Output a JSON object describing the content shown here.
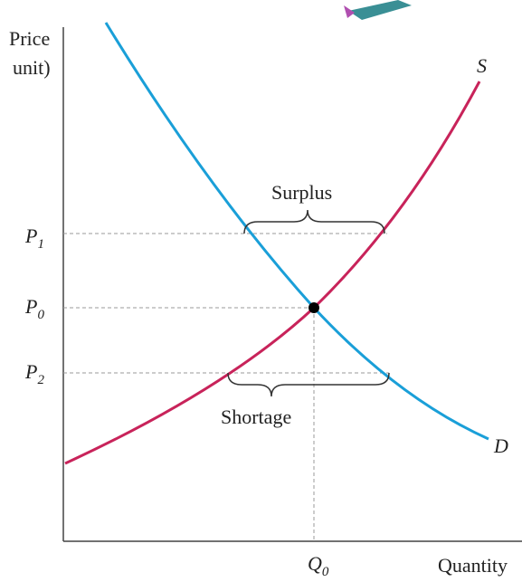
{
  "axis": {
    "y_label_lines": [
      "Price",
      "unit)"
    ],
    "x_label": "Quantity"
  },
  "curves": {
    "supply": "S",
    "demand": "D"
  },
  "annotations": {
    "surplus": "Surplus",
    "shortage": "Shortage"
  },
  "price_levels": [
    {
      "main": "P",
      "sub": "1"
    },
    {
      "main": "P",
      "sub": "0"
    },
    {
      "main": "P",
      "sub": "2"
    }
  ],
  "quantity_level": {
    "main": "Q",
    "sub": "0"
  }
}
